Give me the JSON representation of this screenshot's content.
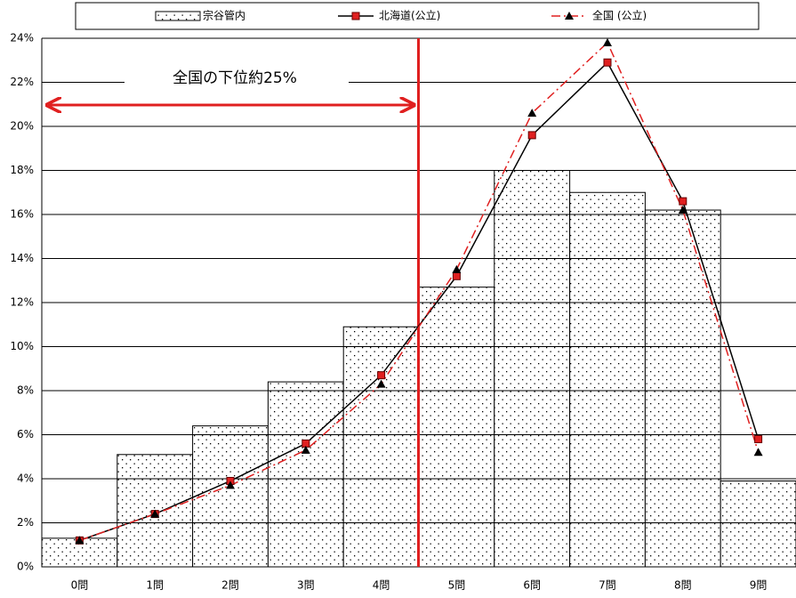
{
  "chart_data": {
    "type": "bar",
    "annotation": "全国の下位約25%",
    "categories": [
      "0問",
      "1問",
      "2問",
      "3問",
      "4問",
      "5問",
      "6問",
      "7問",
      "8問",
      "9問"
    ],
    "series": [
      {
        "name": "宗谷管内",
        "type": "bar",
        "color": "#ffffff",
        "values": [
          1.3,
          5.1,
          6.4,
          8.4,
          10.9,
          12.7,
          18.0,
          17.0,
          16.2,
          3.9
        ]
      },
      {
        "name": "北海道(公立)",
        "type": "line",
        "color": "#000000",
        "marker": "square",
        "marker_color": "#e02020",
        "values": [
          1.2,
          2.4,
          3.9,
          5.6,
          8.7,
          13.2,
          19.6,
          22.9,
          16.6,
          5.8
        ]
      },
      {
        "name": "全国 (公立)",
        "type": "line",
        "color": "#e02020",
        "dash": true,
        "marker": "triangle",
        "marker_color": "#000000",
        "values": [
          1.2,
          2.4,
          3.7,
          5.3,
          8.3,
          13.5,
          20.6,
          23.8,
          16.2,
          5.2
        ]
      }
    ],
    "ylim": [
      0,
      24
    ],
    "yticks": [
      {
        "value": 0,
        "label": "0%"
      },
      {
        "value": 2,
        "label": "2%"
      },
      {
        "value": 4,
        "label": "4%"
      },
      {
        "value": 6,
        "label": "6%"
      },
      {
        "value": 8,
        "label": "8%"
      },
      {
        "value": 10,
        "label": "10%"
      },
      {
        "value": 12,
        "label": "12%"
      },
      {
        "value": 14,
        "label": "14%"
      },
      {
        "value": 16,
        "label": "16%"
      },
      {
        "value": 18,
        "label": "18%"
      },
      {
        "value": 20,
        "label": "20%"
      },
      {
        "value": 22,
        "label": "22%"
      },
      {
        "value": 24,
        "label": "24%"
      }
    ],
    "grid": true,
    "legend": "top"
  }
}
